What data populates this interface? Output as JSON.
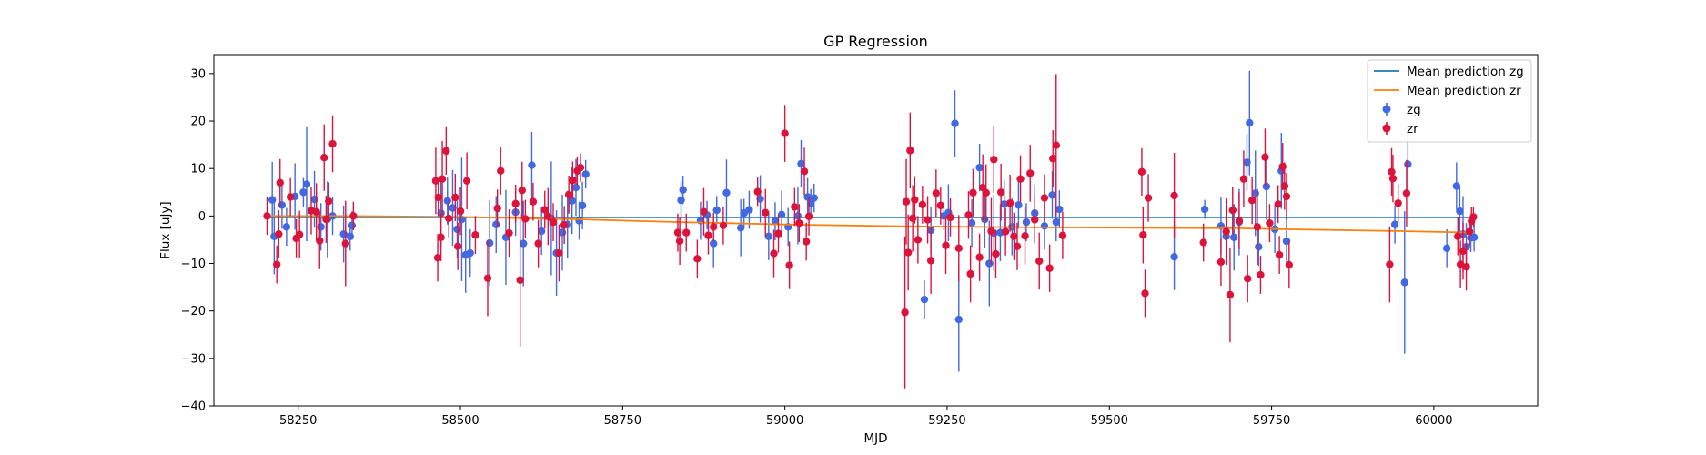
{
  "chart_data": {
    "type": "scatter",
    "title": "GP Regression",
    "xlabel": "MJD",
    "ylabel": "Flux [uJy]",
    "xlim": [
      58120,
      60160
    ],
    "ylim": [
      -40,
      34
    ],
    "x_ticks": [
      58250,
      58500,
      58750,
      59000,
      59250,
      59500,
      59750,
      60000
    ],
    "y_ticks": [
      -40,
      -30,
      -20,
      -10,
      0,
      10,
      20,
      30
    ],
    "grid": false,
    "legend_position": "top-right",
    "legend": [
      "Mean prediction zg",
      "Mean prediction zr",
      "zg",
      "zr"
    ],
    "lines": [
      {
        "name": "Mean prediction zg",
        "color": "#1f77b4",
        "x": [
          58200,
          60060
        ],
        "y": [
          -0.3,
          -0.3
        ]
      },
      {
        "name": "Mean prediction zr",
        "color": "#ff7f0e",
        "x": [
          58200,
          58330,
          58500,
          58680,
          58840,
          59000,
          59190,
          59400,
          59550,
          59700,
          59780,
          59950,
          60060
        ],
        "y": [
          0.0,
          0.0,
          -0.2,
          -0.7,
          -1.3,
          -1.8,
          -2.2,
          -2.4,
          -2.5,
          -2.6,
          -2.8,
          -3.2,
          -3.5
        ]
      }
    ],
    "series": [
      {
        "name": "zg",
        "color": "#4169e1",
        "points": [
          [
            58210,
            3.4,
            8
          ],
          [
            58213,
            -4.3,
            8
          ],
          [
            58225,
            2.3,
            5
          ],
          [
            58232,
            -2.3,
            4
          ],
          [
            58245,
            4.1,
            7
          ],
          [
            58258,
            5.0,
            3
          ],
          [
            58263,
            6.7,
            12
          ],
          [
            58275,
            3.5,
            6
          ],
          [
            58285,
            -2.3,
            5
          ],
          [
            58295,
            -0.7,
            8
          ],
          [
            58303,
            0.0,
            4
          ],
          [
            58320,
            -3.8,
            6
          ],
          [
            58330,
            -4.3,
            3
          ],
          [
            58333,
            -2.0,
            3
          ],
          [
            58470,
            0.6,
            7
          ],
          [
            58480,
            3.2,
            5
          ],
          [
            58488,
            1.7,
            8
          ],
          [
            58495,
            -2.8,
            6
          ],
          [
            58502,
            -0.7,
            13
          ],
          [
            58508,
            -8.2,
            8
          ],
          [
            58515,
            -7.8,
            5
          ],
          [
            58545,
            -5.7,
            9
          ],
          [
            58555,
            -1.8,
            6
          ],
          [
            58570,
            -4.5,
            10
          ],
          [
            58585,
            0.8,
            5
          ],
          [
            58597,
            -5.8,
            9
          ],
          [
            58610,
            10.7,
            7
          ],
          [
            58625,
            -3.2,
            5
          ],
          [
            58640,
            -0.5,
            12
          ],
          [
            58648,
            -7.8,
            9
          ],
          [
            58657,
            -3.5,
            8
          ],
          [
            58665,
            -1.8,
            7
          ],
          [
            58672,
            3.2,
            7
          ],
          [
            58678,
            6.0,
            6
          ],
          [
            58683,
            -1.0,
            4
          ],
          [
            58688,
            2.2,
            5
          ],
          [
            58693,
            8.8,
            3
          ],
          [
            58840,
            3.3,
            4
          ],
          [
            58843,
            5.5,
            3
          ],
          [
            58870,
            -1.0,
            4
          ],
          [
            58880,
            0.2,
            3
          ],
          [
            58890,
            -5.8,
            5
          ],
          [
            58895,
            1.2,
            3
          ],
          [
            58910,
            4.9,
            7
          ],
          [
            58932,
            -2.5,
            6
          ],
          [
            58937,
            0.6,
            3
          ],
          [
            58945,
            1.3,
            4
          ],
          [
            58962,
            3.6,
            5
          ],
          [
            58975,
            -4.3,
            5
          ],
          [
            58985,
            -1.1,
            4
          ],
          [
            58995,
            0.3,
            5
          ],
          [
            59005,
            -2.3,
            4
          ],
          [
            59020,
            0.0,
            6
          ],
          [
            59025,
            11.0,
            5
          ],
          [
            59035,
            4.0,
            4
          ],
          [
            59040,
            2.7,
            3
          ],
          [
            59045,
            3.8,
            3
          ],
          [
            59215,
            -17.6,
            4
          ],
          [
            59225,
            -3.0,
            5
          ],
          [
            59245,
            0.0,
            3
          ],
          [
            59252,
            0.7,
            6
          ],
          [
            59262,
            19.5,
            7
          ],
          [
            59268,
            -21.8,
            11
          ],
          [
            59288,
            -1.5,
            5
          ],
          [
            59300,
            10.2,
            5
          ],
          [
            59308,
            -0.7,
            6
          ],
          [
            59315,
            -10.0,
            9
          ],
          [
            59322,
            -3.6,
            8
          ],
          [
            59332,
            -3.5,
            6
          ],
          [
            59338,
            2.5,
            5
          ],
          [
            59350,
            -2.3,
            6
          ],
          [
            59360,
            2.3,
            5
          ],
          [
            59372,
            -1.3,
            4
          ],
          [
            59385,
            0.6,
            6
          ],
          [
            59400,
            -2.1,
            5
          ],
          [
            59412,
            4.4,
            5
          ],
          [
            59418,
            -1.3,
            4
          ],
          [
            59423,
            1.4,
            4
          ],
          [
            59647,
            1.4,
            2
          ],
          [
            59672,
            -2.1,
            6
          ],
          [
            59680,
            -4.3,
            5
          ],
          [
            59692,
            -4.5,
            7
          ],
          [
            59700,
            -1.3,
            7
          ],
          [
            59712,
            11.3,
            6
          ],
          [
            59716,
            19.6,
            11
          ],
          [
            59725,
            4.8,
            9
          ],
          [
            59730,
            -6.5,
            4
          ],
          [
            59742,
            6.2,
            7
          ],
          [
            59755,
            -2.8,
            5
          ],
          [
            59765,
            9.5,
            8
          ],
          [
            59773,
            -5.3,
            5
          ],
          [
            59600,
            -8.6,
            7
          ],
          [
            59940,
            -1.8,
            4
          ],
          [
            59955,
            -14.0,
            15
          ],
          [
            59960,
            10.9,
            7
          ],
          [
            60020,
            -6.8,
            4
          ],
          [
            60035,
            6.3,
            5
          ],
          [
            60040,
            1.0,
            5
          ],
          [
            60045,
            -3.8,
            8
          ],
          [
            60050,
            -6.5,
            5
          ],
          [
            60057,
            -4.6,
            3
          ],
          [
            60062,
            -4.5,
            3
          ]
        ]
      },
      {
        "name": "zr",
        "color": "#dc143c",
        "points": [
          [
            58202,
            0.0,
            4
          ],
          [
            58217,
            -10.2,
            4
          ],
          [
            58220,
            -3.8,
            5
          ],
          [
            58222,
            7.0,
            5
          ],
          [
            58238,
            4.0,
            4
          ],
          [
            58247,
            -4.7,
            4
          ],
          [
            58252,
            -3.9,
            5
          ],
          [
            58270,
            1.1,
            5
          ],
          [
            58278,
            0.9,
            6
          ],
          [
            58283,
            -5.2,
            6
          ],
          [
            58290,
            12.3,
            7
          ],
          [
            58293,
            -0.7,
            5
          ],
          [
            58297,
            3.1,
            4
          ],
          [
            58303,
            15.2,
            6
          ],
          [
            58323,
            -5.8,
            9
          ],
          [
            58335,
            0.0,
            3
          ],
          [
            58462,
            7.4,
            7
          ],
          [
            58465,
            -8.8,
            5
          ],
          [
            58466,
            3.9,
            4
          ],
          [
            58470,
            -4.5,
            5
          ],
          [
            58472,
            7.8,
            8
          ],
          [
            58478,
            13.7,
            5
          ],
          [
            58482,
            -0.5,
            4
          ],
          [
            58492,
            3.9,
            5
          ],
          [
            58496,
            -6.4,
            5
          ],
          [
            58500,
            1.0,
            5
          ],
          [
            58510,
            7.4,
            6
          ],
          [
            58523,
            -4.0,
            4
          ],
          [
            58542,
            -13.1,
            8
          ],
          [
            58557,
            1.6,
            4
          ],
          [
            58562,
            9.5,
            5
          ],
          [
            58575,
            -3.6,
            5
          ],
          [
            58585,
            2.6,
            4
          ],
          [
            58592,
            -13.5,
            14
          ],
          [
            58595,
            5.4,
            6
          ],
          [
            58600,
            -0.6,
            4
          ],
          [
            58612,
            3.0,
            4
          ],
          [
            58620,
            -5.8,
            5
          ],
          [
            58630,
            1.3,
            4
          ],
          [
            58635,
            -0.1,
            6
          ],
          [
            58643,
            -1.3,
            4
          ],
          [
            58652,
            -7.8,
            6
          ],
          [
            58660,
            -1.9,
            4
          ],
          [
            58667,
            4.5,
            4
          ],
          [
            58673,
            7.5,
            4
          ],
          [
            58680,
            9.5,
            3
          ],
          [
            58685,
            10.2,
            3
          ],
          [
            58835,
            -3.5,
            4
          ],
          [
            58838,
            -5.3,
            5
          ],
          [
            58848,
            -3.5,
            4
          ],
          [
            58865,
            -9.0,
            4
          ],
          [
            58875,
            0.9,
            5
          ],
          [
            58882,
            -4.1,
            4
          ],
          [
            58890,
            -2.3,
            3
          ],
          [
            58905,
            -2.0,
            4
          ],
          [
            58958,
            5.1,
            3
          ],
          [
            58970,
            0.7,
            5
          ],
          [
            58983,
            -7.9,
            5
          ],
          [
            58990,
            -3.7,
            4
          ],
          [
            59000,
            17.4,
            6
          ],
          [
            59007,
            -10.4,
            5
          ],
          [
            59015,
            1.9,
            4
          ],
          [
            59022,
            -1.5,
            4
          ],
          [
            59030,
            9.4,
            5
          ],
          [
            59033,
            -5.4,
            4
          ],
          [
            59037,
            -0.1,
            4
          ],
          [
            59185,
            -20.3,
            16
          ],
          [
            59187,
            3.0,
            9
          ],
          [
            59190,
            -7.7,
            8
          ],
          [
            59193,
            13.8,
            8
          ],
          [
            59197,
            -0.5,
            7
          ],
          [
            59200,
            3.4,
            5
          ],
          [
            59205,
            -5.0,
            5
          ],
          [
            59212,
            2.4,
            4
          ],
          [
            59220,
            -0.8,
            5
          ],
          [
            59225,
            -9.4,
            7
          ],
          [
            59233,
            4.8,
            5
          ],
          [
            59240,
            2.2,
            4
          ],
          [
            59248,
            -6.2,
            6
          ],
          [
            59255,
            -0.3,
            4
          ],
          [
            59268,
            -6.8,
            7
          ],
          [
            59283,
            0.2,
            5
          ],
          [
            59286,
            -12.2,
            6
          ],
          [
            59290,
            4.9,
            5
          ],
          [
            59300,
            -8.7,
            5
          ],
          [
            59305,
            6.0,
            7
          ],
          [
            59310,
            4.9,
            6
          ],
          [
            59318,
            -3.2,
            7
          ],
          [
            59322,
            11.9,
            7
          ],
          [
            59325,
            -8.0,
            5
          ],
          [
            59333,
            5.0,
            6
          ],
          [
            59340,
            -3.3,
            5
          ],
          [
            59347,
            2.7,
            6
          ],
          [
            59353,
            -4.3,
            5
          ],
          [
            59358,
            -6.4,
            5
          ],
          [
            59363,
            7.8,
            5
          ],
          [
            59370,
            -4.2,
            6
          ],
          [
            59378,
            9.0,
            6
          ],
          [
            59385,
            -0.8,
            5
          ],
          [
            59392,
            -9.5,
            6
          ],
          [
            59400,
            3.8,
            5
          ],
          [
            59408,
            -11.0,
            5
          ],
          [
            59413,
            12.1,
            6
          ],
          [
            59418,
            14.9,
            15
          ],
          [
            59428,
            -4.1,
            5
          ],
          [
            59550,
            9.3,
            5
          ],
          [
            59552,
            -4.0,
            6
          ],
          [
            59555,
            -16.3,
            5
          ],
          [
            59560,
            3.8,
            5
          ],
          [
            59600,
            4.3,
            9
          ],
          [
            59645,
            -5.6,
            4
          ],
          [
            59672,
            -9.7,
            5
          ],
          [
            59680,
            -3.3,
            7
          ],
          [
            59686,
            -16.6,
            10
          ],
          [
            59690,
            1.2,
            5
          ],
          [
            59700,
            -1.0,
            6
          ],
          [
            59707,
            7.8,
            6
          ],
          [
            59713,
            -13.2,
            5
          ],
          [
            59720,
            3.3,
            5
          ],
          [
            59728,
            -2.3,
            8
          ],
          [
            59733,
            -12.4,
            4
          ],
          [
            59740,
            12.4,
            6
          ],
          [
            59747,
            -1.5,
            4
          ],
          [
            59760,
            2.5,
            4
          ],
          [
            59762,
            -8.2,
            4
          ],
          [
            59767,
            10.4,
            5
          ],
          [
            59770,
            6.3,
            5
          ],
          [
            59773,
            4.1,
            5
          ],
          [
            59777,
            -10.3,
            5
          ],
          [
            59932,
            -10.2,
            8
          ],
          [
            59935,
            9.3,
            5
          ],
          [
            59937,
            7.9,
            5
          ],
          [
            59945,
            2.7,
            4
          ],
          [
            59958,
            4.8,
            7
          ],
          [
            60037,
            -4.3,
            4
          ],
          [
            60041,
            -10.2,
            5
          ],
          [
            60045,
            -7.4,
            6
          ],
          [
            60050,
            -10.7,
            5
          ],
          [
            60055,
            -3.3,
            3
          ],
          [
            60058,
            -1.1,
            3
          ],
          [
            60061,
            -0.2,
            2
          ]
        ]
      }
    ]
  }
}
